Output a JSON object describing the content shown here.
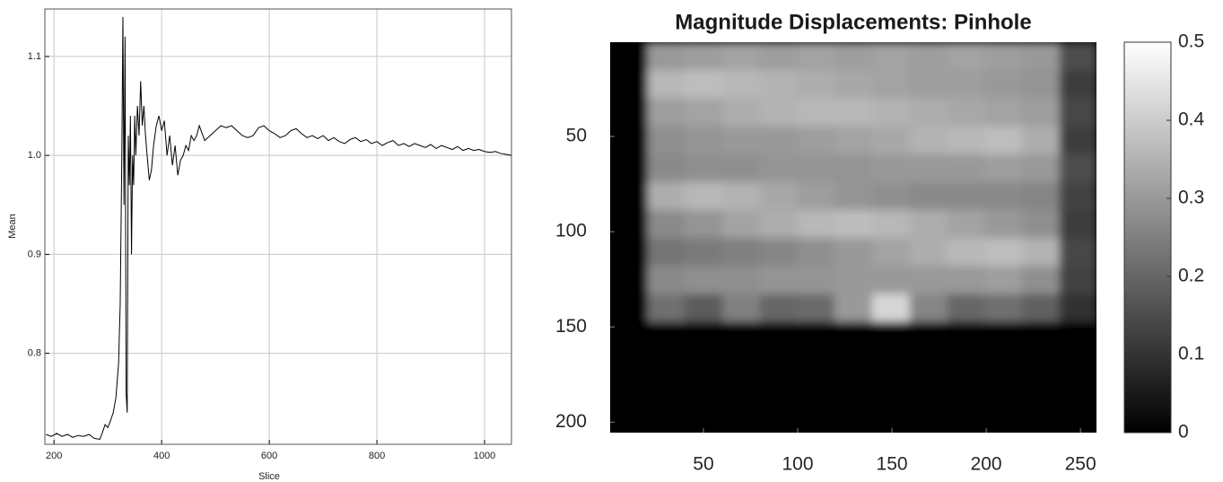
{
  "chart_data": [
    {
      "type": "line",
      "xlabel": "Slice",
      "ylabel": "Mean",
      "x": [
        185,
        195,
        205,
        215,
        225,
        235,
        245,
        255,
        265,
        275,
        285,
        290,
        295,
        300,
        305,
        310,
        315,
        320,
        323,
        326,
        328,
        330,
        332,
        334,
        336,
        338,
        340,
        342,
        344,
        346,
        348,
        350,
        352,
        355,
        358,
        361,
        364,
        367,
        370,
        373,
        377,
        381,
        385,
        390,
        395,
        400,
        405,
        410,
        415,
        420,
        425,
        430,
        435,
        440,
        445,
        450,
        455,
        460,
        465,
        470,
        480,
        490,
        500,
        510,
        520,
        530,
        540,
        550,
        560,
        570,
        580,
        590,
        600,
        610,
        620,
        630,
        640,
        650,
        660,
        670,
        680,
        690,
        700,
        710,
        720,
        730,
        740,
        750,
        760,
        770,
        780,
        790,
        800,
        810,
        820,
        830,
        840,
        850,
        860,
        870,
        880,
        890,
        900,
        910,
        920,
        930,
        940,
        950,
        960,
        970,
        980,
        990,
        1000,
        1010,
        1020,
        1030,
        1040,
        1050
      ],
      "series": [
        {
          "color": "#000000",
          "values": [
            0.718,
            0.716,
            0.719,
            0.716,
            0.718,
            0.715,
            0.717,
            0.716,
            0.718,
            0.714,
            0.713,
            0.72,
            0.728,
            0.725,
            0.732,
            0.74,
            0.755,
            0.79,
            0.85,
            1.0,
            1.14,
            0.95,
            1.12,
            0.76,
            0.74,
            1.02,
            0.97,
            1.04,
            0.9,
            1.0,
            0.97,
            1.04,
            1.0,
            1.05,
            1.02,
            1.075,
            1.03,
            1.05,
            1.02,
            1.0,
            0.975,
            0.985,
            1.01,
            1.03,
            1.04,
            1.025,
            1.035,
            1.0,
            1.02,
            0.99,
            1.01,
            0.98,
            0.995,
            1.0,
            1.01,
            1.005,
            1.02,
            1.015,
            1.02,
            1.03,
            1.015,
            1.02,
            1.025,
            1.03,
            1.028,
            1.03,
            1.025,
            1.02,
            1.018,
            1.02,
            1.028,
            1.03,
            1.025,
            1.022,
            1.018,
            1.02,
            1.025,
            1.027,
            1.022,
            1.018,
            1.02,
            1.017,
            1.02,
            1.015,
            1.018,
            1.014,
            1.012,
            1.016,
            1.018,
            1.014,
            1.016,
            1.012,
            1.014,
            1.01,
            1.013,
            1.015,
            1.01,
            1.012,
            1.009,
            1.012,
            1.01,
            1.008,
            1.011,
            1.007,
            1.01,
            1.008,
            1.006,
            1.009,
            1.005,
            1.007,
            1.005,
            1.006,
            1.004,
            1.003,
            1.004,
            1.002,
            1.001,
            1.0
          ]
        }
      ],
      "xlim": [
        183,
        1050
      ],
      "ylim": [
        0.708,
        1.148
      ],
      "xticks": [
        200,
        400,
        600,
        800,
        1000
      ],
      "yticks": [
        0.8,
        0.9,
        {
          "value": 1,
          "label": "1.0"
        },
        1.1
      ],
      "grid": true
    },
    {
      "type": "heatmap",
      "title": "Magnitude Displacements: Pinhole",
      "x": [
        10.4,
        30.3,
        50.1,
        70.0,
        89.8,
        109.7,
        129.5,
        149.4,
        169.3,
        189.1,
        209.0,
        228.8,
        248.7
      ],
      "y": [
        7.8,
        22.5,
        37.2,
        51.9,
        66.6,
        81.2,
        95.9,
        110.6,
        125.3,
        140.0,
        154.6,
        169.3,
        184.0,
        198.7
      ],
      "z": [
        [
          0,
          0.3,
          0.31,
          0.32,
          0.31,
          0.32,
          0.31,
          0.32,
          0.31,
          0.32,
          0.31,
          0.3,
          0.15
        ],
        [
          0,
          0.36,
          0.37,
          0.36,
          0.35,
          0.34,
          0.33,
          0.32,
          0.31,
          0.31,
          0.3,
          0.29,
          0.12
        ],
        [
          0,
          0.31,
          0.32,
          0.34,
          0.35,
          0.36,
          0.36,
          0.35,
          0.34,
          0.33,
          0.32,
          0.31,
          0.14
        ],
        [
          0,
          0.28,
          0.29,
          0.3,
          0.3,
          0.31,
          0.32,
          0.33,
          0.35,
          0.36,
          0.37,
          0.34,
          0.12
        ],
        [
          0,
          0.27,
          0.28,
          0.28,
          0.29,
          0.29,
          0.29,
          0.3,
          0.3,
          0.3,
          0.31,
          0.3,
          0.15
        ],
        [
          0,
          0.34,
          0.36,
          0.35,
          0.33,
          0.31,
          0.29,
          0.28,
          0.27,
          0.27,
          0.27,
          0.26,
          0.13
        ],
        [
          0,
          0.27,
          0.29,
          0.32,
          0.34,
          0.36,
          0.37,
          0.36,
          0.34,
          0.32,
          0.3,
          0.28,
          0.12
        ],
        [
          0,
          0.23,
          0.24,
          0.25,
          0.26,
          0.28,
          0.3,
          0.32,
          0.34,
          0.36,
          0.37,
          0.35,
          0.14
        ],
        [
          0,
          0.27,
          0.28,
          0.28,
          0.29,
          0.29,
          0.3,
          0.3,
          0.3,
          0.3,
          0.31,
          0.28,
          0.13
        ],
        [
          0,
          0.22,
          0.18,
          0.25,
          0.2,
          0.21,
          0.3,
          0.42,
          0.26,
          0.2,
          0.22,
          0.19,
          0.1
        ],
        [
          0,
          0,
          0,
          0,
          0,
          0,
          0,
          0,
          0,
          0,
          0,
          0,
          0
        ],
        [
          0,
          0,
          0,
          0,
          0,
          0,
          0,
          0,
          0,
          0,
          0,
          0,
          0
        ],
        [
          0,
          0,
          0,
          0,
          0,
          0,
          0,
          0,
          0,
          0,
          0,
          0,
          0
        ],
        [
          0,
          0,
          0,
          0,
          0,
          0,
          0,
          0,
          0,
          0,
          0,
          0,
          0
        ]
      ],
      "xlim": [
        0.5,
        258.5
      ],
      "ylim": [
        205.5,
        0.5
      ],
      "y_reversed": true,
      "xticks": [
        50,
        100,
        150,
        200,
        250
      ],
      "yticks": [
        50,
        100,
        150,
        200
      ],
      "colormap": "gray",
      "clim": [
        0,
        0.5
      ],
      "colorbar_ticks": [
        0,
        0.1,
        0.2,
        0.3,
        0.4,
        0.5
      ]
    }
  ]
}
